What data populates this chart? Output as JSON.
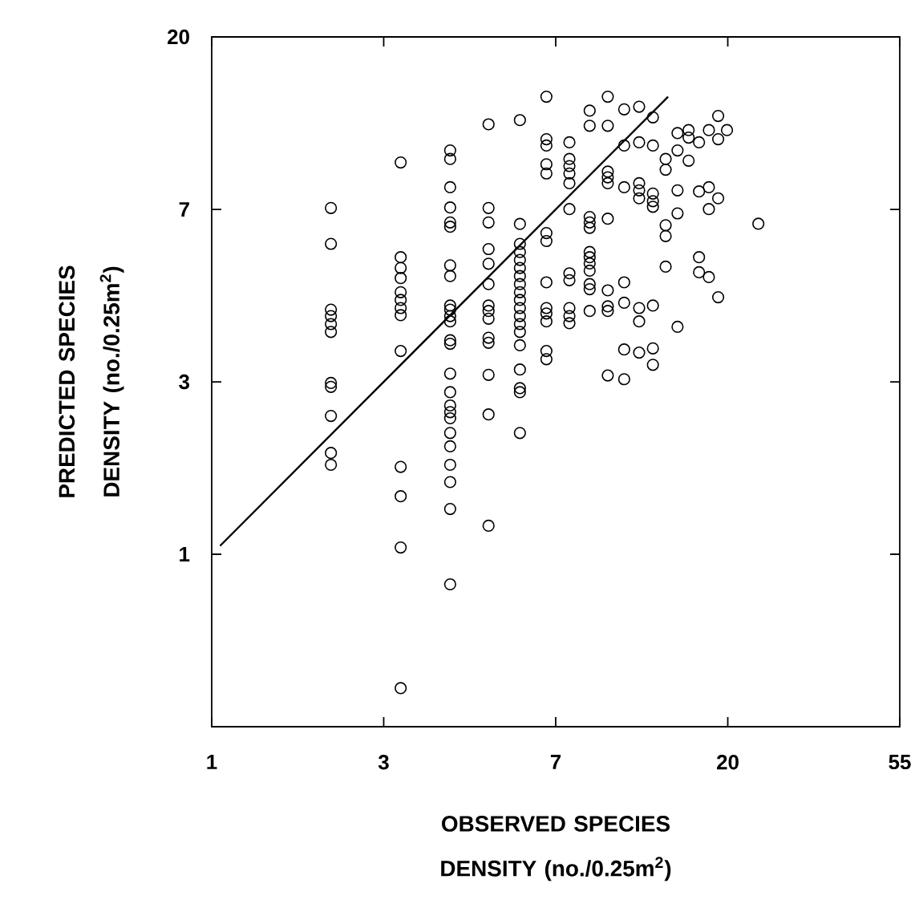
{
  "chart_data": {
    "type": "scatter",
    "xlabel": "OBSERVED SPECIES DENSITY (no./0.25m$^{2}$)",
    "ylabel": "PREDICTED SPECIES DENSITY (no./0.25m$^{2}$)",
    "log": "xy",
    "xlim": [
      1,
      54.6
    ],
    "ylim": [
      0.3679,
      20.09
    ],
    "xticks": [
      1,
      {
        "value": 2.718,
        "label": "3"
      },
      {
        "value": 7.389,
        "label": "7"
      },
      {
        "value": 20.09,
        "label": "20"
      },
      {
        "value": 54.6,
        "label": "55"
      }
    ],
    "yticks": [
      1,
      {
        "value": 2.718,
        "label": "3"
      },
      {
        "value": 7.389,
        "label": "7"
      },
      {
        "value": 20.09,
        "label": "20"
      }
    ],
    "series": [
      {
        "color": "#000000",
        "marker": "circle",
        "x": [
          2,
          2,
          2,
          2,
          2,
          2,
          2,
          2,
          2,
          2,
          2,
          3,
          3,
          3,
          3,
          3,
          3,
          3,
          3,
          3,
          3,
          3,
          3,
          3,
          4,
          4,
          4,
          4,
          4,
          4,
          4,
          4,
          4,
          4,
          4,
          4,
          4,
          4,
          4,
          4,
          4,
          4,
          4,
          4,
          4,
          4,
          4,
          4,
          4,
          5,
          5,
          5,
          5,
          5,
          5,
          5,
          5,
          5,
          5,
          5,
          5,
          5,
          5,
          6,
          6,
          6,
          6,
          6,
          6,
          6,
          6,
          6,
          6,
          6,
          6,
          6,
          6,
          6,
          6,
          6,
          6,
          6,
          7,
          7,
          7,
          7,
          7,
          7,
          7,
          7,
          7,
          7,
          7,
          7,
          7,
          8,
          8,
          8,
          8,
          8,
          8,
          8,
          8,
          8,
          8,
          8,
          9,
          9,
          9,
          9,
          9,
          9,
          9,
          9,
          9,
          9,
          9,
          9,
          10,
          10,
          10,
          10,
          10,
          10,
          10,
          10,
          10,
          10,
          11,
          11,
          11,
          11,
          11,
          11,
          11,
          12,
          12,
          12,
          12,
          12,
          12,
          12,
          12,
          13,
          13,
          13,
          13,
          13,
          13,
          13,
          13,
          14,
          14,
          14,
          14,
          14,
          15,
          15,
          15,
          15,
          15,
          16,
          16,
          16,
          17,
          17,
          17,
          17,
          18,
          18,
          18,
          18,
          19,
          19,
          19,
          19,
          20,
          24
        ],
        "values": [
          7.45,
          6.05,
          4.13,
          3.98,
          3.8,
          3.63,
          2.7,
          2.64,
          2.23,
          1.8,
          1.68,
          9.7,
          5.6,
          5.26,
          4.96,
          4.57,
          4.37,
          4.17,
          4.0,
          3.25,
          1.66,
          1.4,
          1.04,
          0.46,
          10.4,
          9.9,
          8.4,
          7.47,
          6.85,
          6.68,
          5.34,
          5.02,
          4.23,
          4.13,
          3.98,
          3.86,
          3.46,
          3.39,
          2.85,
          2.56,
          2.37,
          2.28,
          2.2,
          2.02,
          1.87,
          1.68,
          1.52,
          1.3,
          0.84,
          12.1,
          7.45,
          6.85,
          5.87,
          5.39,
          4.79,
          4.23,
          4.1,
          3.92,
          3.51,
          3.41,
          2.83,
          2.25,
          1.18,
          12.4,
          6.79,
          6.05,
          5.77,
          5.51,
          5.26,
          5.02,
          4.79,
          4.57,
          4.37,
          4.17,
          3.98,
          3.8,
          3.63,
          3.36,
          2.92,
          2.62,
          2.56,
          2.02,
          14.2,
          11.1,
          10.7,
          9.6,
          9.1,
          6.44,
          6.15,
          4.84,
          4.17,
          4.04,
          3.86,
          3.25,
          3.1,
          10.9,
          9.9,
          9.5,
          9.1,
          8.6,
          7.4,
          5.1,
          4.9,
          4.17,
          3.98,
          3.82,
          13.1,
          12.0,
          7.07,
          6.85,
          6.64,
          5.77,
          5.6,
          5.4,
          5.18,
          4.79,
          4.65,
          4.1,
          14.2,
          12.0,
          9.2,
          8.9,
          8.6,
          7.0,
          4.62,
          4.21,
          4.1,
          2.82,
          13.2,
          10.7,
          8.4,
          4.84,
          4.3,
          3.28,
          2.76,
          13.4,
          10.9,
          8.6,
          8.25,
          7.88,
          4.17,
          3.86,
          3.22,
          12.6,
          10.7,
          8.1,
          7.75,
          7.5,
          4.23,
          3.3,
          3.0,
          9.9,
          9.3,
          6.74,
          6.33,
          5.3,
          11.5,
          10.4,
          8.25,
          7.22,
          3.74,
          11.7,
          11.2,
          9.8,
          10.9,
          8.2,
          5.6,
          5.13,
          11.7,
          8.4,
          7.4,
          4.99,
          12.7,
          11.1,
          7.88,
          4.44,
          11.7,
          6.8
        ]
      },
      {
        "type": "line",
        "color": "#000000",
        "marker": "none",
        "line_style": "solid",
        "x": [
          1.05,
          14.2
        ],
        "values": [
          1.05,
          14.2
        ]
      }
    ]
  }
}
